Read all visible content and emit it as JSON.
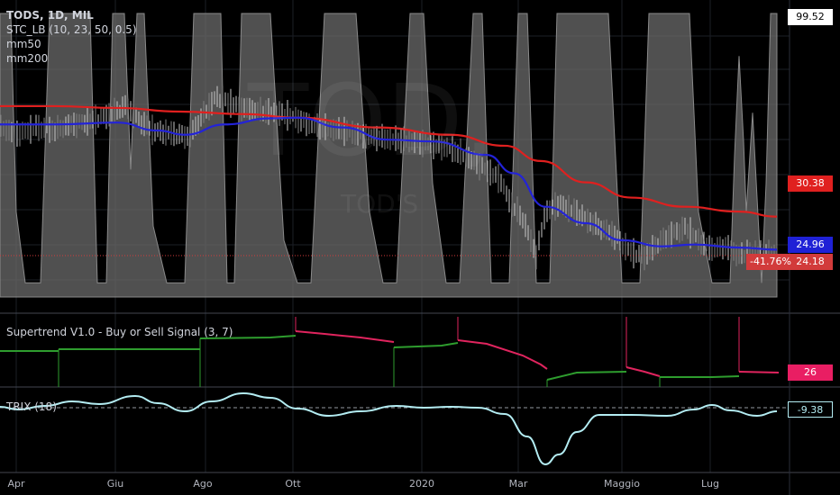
{
  "header": {
    "symbol_line": "TODS, 1D, MIL",
    "indicators": [
      "STC_LB (10, 23, 50, 0.5)",
      "mm50",
      "mm200"
    ]
  },
  "watermark": {
    "symbol": "TOD,",
    "description": "TOD'S"
  },
  "price_axis": {
    "top_label": "99.52",
    "tags": [
      {
        "id": "mm200",
        "value": "30.38",
        "color": "#e0201f"
      },
      {
        "id": "mm50",
        "value": "24.96",
        "color": "#1f21d6"
      },
      {
        "id": "last",
        "value": "24.18",
        "color": "#d23b3b",
        "change": "-41.76%"
      }
    ]
  },
  "panes": {
    "supertrend": {
      "title": "Supertrend V1.0 - Buy or Sell Signal (3, 7)",
      "value": "26",
      "value_color": "#e91e63"
    },
    "trix": {
      "title": "TRIX (18)",
      "value": "-9.38"
    }
  },
  "x_axis": {
    "labels": [
      "Apr",
      "Giu",
      "Ago",
      "Ott",
      "2020",
      "Mar",
      "Maggio",
      "Lug"
    ]
  },
  "colors": {
    "mm50": "#2323d8",
    "mm200": "#e0201f",
    "stc": "#6b6b6b",
    "trix": "#b3ecf2",
    "super_up": "#2e9d2e",
    "super_down": "#e0245e"
  },
  "chart_data": {
    "type": "line",
    "title": "TODS, 1D, MIL",
    "x": [
      "2019-04",
      "2019-06",
      "2019-08",
      "2019-10",
      "2020-01",
      "2020-03",
      "2020-05",
      "2020-07",
      "2020-08"
    ],
    "series": [
      {
        "name": "mm200",
        "values": [
          48.5,
          47.8,
          47.2,
          46.6,
          43.8,
          40.5,
          35.2,
          32.2,
          30.38
        ]
      },
      {
        "name": "mm50",
        "values": [
          45.5,
          45.8,
          43.8,
          46.6,
          42.7,
          36.5,
          29.3,
          25.8,
          24.96
        ]
      },
      {
        "name": "TRIX (18)",
        "values": [
          0.5,
          1.6,
          0.5,
          2.2,
          0.5,
          -9.5,
          -1.2,
          0.5,
          -9.38
        ]
      }
    ],
    "last_price": 24.18,
    "change_percent": "-41.76%",
    "supertrend_last": 26
  }
}
